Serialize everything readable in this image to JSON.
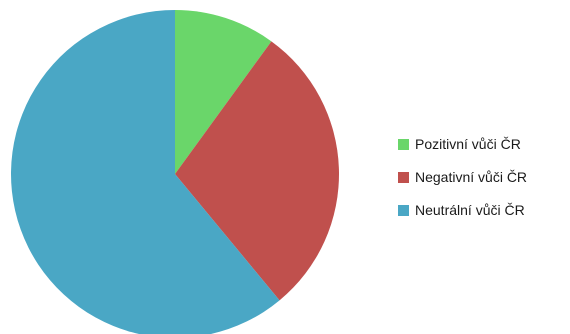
{
  "chart_data": {
    "type": "pie",
    "title": "",
    "categories": [
      "Pozitivní vůči ČR",
      "Negativní vůči ČR",
      "Neutrální vůči ČR"
    ],
    "values": [
      10,
      29,
      61
    ],
    "colors": [
      "#6ad66a",
      "#c0504d",
      "#4aa7c5"
    ],
    "legend_position": "right",
    "start_angle": "12 o'clock",
    "direction": "clockwise"
  }
}
